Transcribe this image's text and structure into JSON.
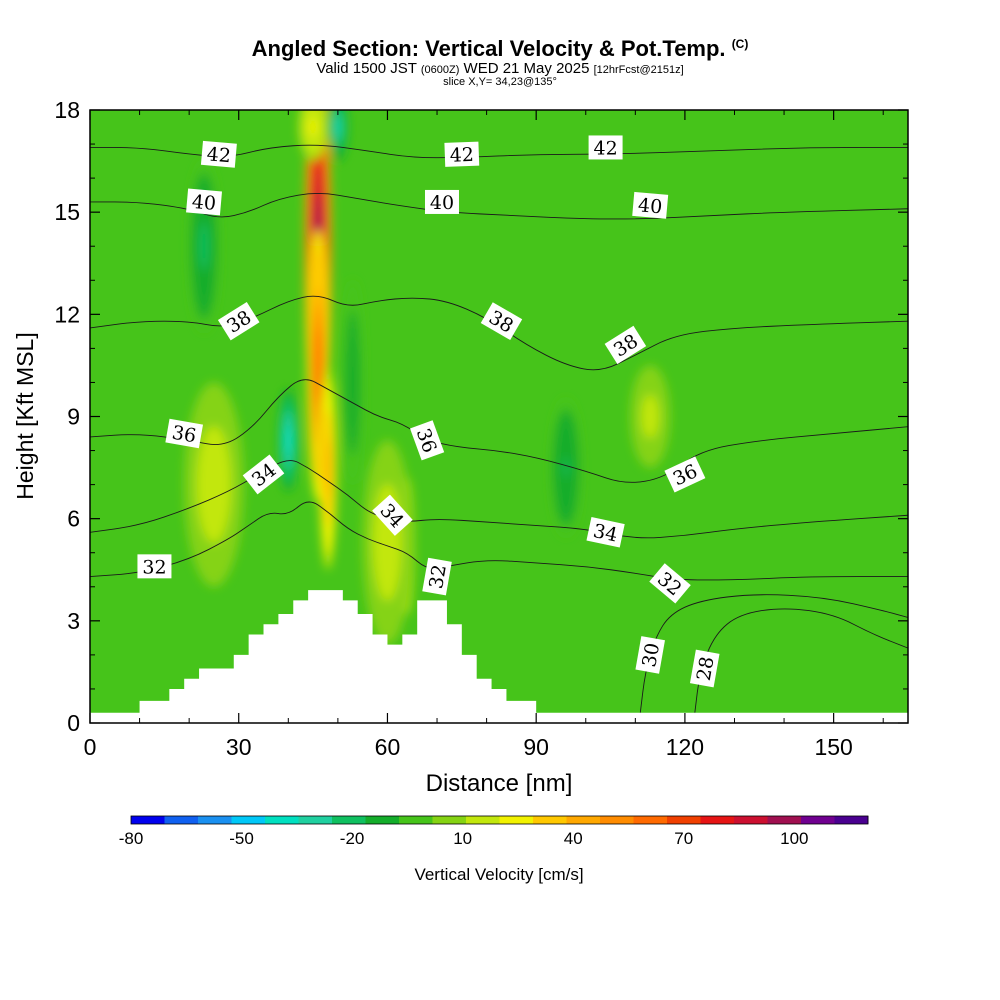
{
  "title": {
    "main": "Angled Section: Vertical Velocity & Pot.Temp.",
    "main_tag": "(C)",
    "valid_prefix": "Valid 1500 JST",
    "valid_zulu": "(0600Z)",
    "valid_date": "WED 21 May 2025",
    "valid_fcst": "[12hrFcst@2151z]",
    "slice": "slice X,Y= 34,23@135°"
  },
  "chart_data": {
    "type": "contour",
    "title": "Angled Section: Vertical Velocity & Pot.Temp.",
    "xlabel": "Distance [nm]",
    "ylabel": "Height [Kft MSL]",
    "xlim": [
      0,
      165
    ],
    "ylim": [
      0,
      18
    ],
    "xticks": [
      0,
      30,
      60,
      90,
      120,
      150
    ],
    "yticks": [
      0,
      3,
      6,
      9,
      12,
      15,
      18
    ],
    "colorbar": {
      "label": "Vertical Velocity [cm/s]",
      "tick_labels": [
        "-80",
        "-50",
        "-20",
        "10",
        "40",
        "70",
        "100"
      ],
      "tick_values": [
        -80,
        -50,
        -20,
        10,
        40,
        70,
        100
      ],
      "range": [
        -80,
        120
      ],
      "colors": [
        "#0000ee",
        "#1060f0",
        "#1a90f0",
        "#00c8f8",
        "#00e0c0",
        "#20d0a0",
        "#10c060",
        "#14ad2b",
        "#46c41a",
        "#85d313",
        "#c2e70d",
        "#f2f200",
        "#ffc800",
        "#ffa800",
        "#ff8c00",
        "#ff6a00",
        "#f04000",
        "#e61414",
        "#cc1030",
        "#a01050",
        "#700090",
        "#4a0090"
      ]
    },
    "terrain_kft": [
      [
        0,
        0.3
      ],
      [
        10,
        0.3
      ],
      [
        10,
        0.65
      ],
      [
        16,
        0.65
      ],
      [
        16,
        1.0
      ],
      [
        19,
        1.0
      ],
      [
        19,
        1.3
      ],
      [
        22,
        1.3
      ],
      [
        22,
        1.6
      ],
      [
        29,
        1.6
      ],
      [
        29,
        2.0
      ],
      [
        32,
        2.0
      ],
      [
        32,
        2.6
      ],
      [
        35,
        2.6
      ],
      [
        35,
        2.9
      ],
      [
        38,
        2.9
      ],
      [
        38,
        3.2
      ],
      [
        41,
        3.2
      ],
      [
        41,
        3.6
      ],
      [
        44,
        3.6
      ],
      [
        44,
        3.9
      ],
      [
        51,
        3.9
      ],
      [
        51,
        3.6
      ],
      [
        54,
        3.6
      ],
      [
        54,
        3.2
      ],
      [
        57,
        3.2
      ],
      [
        57,
        2.6
      ],
      [
        60,
        2.6
      ],
      [
        60,
        2.3
      ],
      [
        63,
        2.3
      ],
      [
        63,
        2.6
      ],
      [
        66,
        2.6
      ],
      [
        66,
        3.6
      ],
      [
        72,
        3.6
      ],
      [
        72,
        2.9
      ],
      [
        75,
        2.9
      ],
      [
        75,
        2.0
      ],
      [
        78,
        2.0
      ],
      [
        78,
        1.3
      ],
      [
        81,
        1.3
      ],
      [
        81,
        1.0
      ],
      [
        84,
        1.0
      ],
      [
        84,
        0.65
      ],
      [
        90,
        0.65
      ],
      [
        90,
        0.3
      ],
      [
        165,
        0.3
      ]
    ],
    "series": [
      {
        "name": "28",
        "points": [
          [
            122,
            0.3
          ],
          [
            123,
            1.5
          ],
          [
            126,
            2.6
          ],
          [
            131,
            3.2
          ],
          [
            140,
            3.4
          ],
          [
            150,
            3.2
          ],
          [
            158,
            2.6
          ],
          [
            165,
            2.2
          ]
        ]
      },
      {
        "name": "30",
        "points": [
          [
            111,
            0.3
          ],
          [
            112,
            1.5
          ],
          [
            114,
            2.5
          ],
          [
            117,
            3.2
          ],
          [
            123,
            3.6
          ],
          [
            134,
            3.8
          ],
          [
            148,
            3.7
          ],
          [
            160,
            3.3
          ],
          [
            165,
            3.1
          ]
        ]
      },
      {
        "name": "32",
        "points": [
          [
            0,
            4.3
          ],
          [
            10,
            4.4
          ],
          [
            20,
            4.8
          ],
          [
            28,
            5.4
          ],
          [
            32,
            5.8
          ],
          [
            36,
            6.2
          ],
          [
            40,
            6.1
          ],
          [
            44,
            6.6
          ],
          [
            48,
            6.2
          ],
          [
            52,
            5.7
          ],
          [
            56,
            5.4
          ],
          [
            60,
            5.2
          ],
          [
            64,
            5.0
          ],
          [
            68,
            4.5
          ],
          [
            72,
            4.6
          ],
          [
            80,
            4.8
          ],
          [
            90,
            4.7
          ],
          [
            100,
            4.6
          ],
          [
            110,
            4.4
          ],
          [
            118,
            4.2
          ],
          [
            130,
            4.2
          ],
          [
            145,
            4.3
          ],
          [
            165,
            4.3
          ]
        ]
      },
      {
        "name": "34",
        "points": [
          [
            0,
            5.6
          ],
          [
            10,
            5.8
          ],
          [
            20,
            6.3
          ],
          [
            28,
            6.8
          ],
          [
            34,
            7.3
          ],
          [
            40,
            7.8
          ],
          [
            44,
            7.5
          ],
          [
            48,
            7.1
          ],
          [
            52,
            6.7
          ],
          [
            56,
            6.2
          ],
          [
            60,
            6.0
          ],
          [
            64,
            5.9
          ],
          [
            70,
            6.0
          ],
          [
            80,
            5.9
          ],
          [
            90,
            5.8
          ],
          [
            100,
            5.7
          ],
          [
            110,
            5.4
          ],
          [
            120,
            5.5
          ],
          [
            130,
            5.7
          ],
          [
            145,
            5.9
          ],
          [
            165,
            6.1
          ]
        ]
      },
      {
        "name": "36",
        "points": [
          [
            0,
            8.4
          ],
          [
            10,
            8.5
          ],
          [
            20,
            8.3
          ],
          [
            27,
            8.1
          ],
          [
            33,
            8.7
          ],
          [
            38,
            9.6
          ],
          [
            43,
            10.2
          ],
          [
            48,
            9.8
          ],
          [
            53,
            9.4
          ],
          [
            58,
            9.0
          ],
          [
            63,
            8.8
          ],
          [
            68,
            8.3
          ],
          [
            74,
            8.1
          ],
          [
            82,
            8.0
          ],
          [
            90,
            7.8
          ],
          [
            100,
            7.4
          ],
          [
            108,
            7.0
          ],
          [
            116,
            7.2
          ],
          [
            123,
            8.0
          ],
          [
            135,
            8.3
          ],
          [
            150,
            8.5
          ],
          [
            165,
            8.7
          ]
        ]
      },
      {
        "name": "38",
        "points": [
          [
            0,
            11.6
          ],
          [
            10,
            11.8
          ],
          [
            20,
            11.8
          ],
          [
            27,
            11.6
          ],
          [
            33,
            11.9
          ],
          [
            40,
            12.4
          ],
          [
            46,
            12.6
          ],
          [
            52,
            12.2
          ],
          [
            58,
            12.4
          ],
          [
            65,
            12.5
          ],
          [
            72,
            12.4
          ],
          [
            80,
            11.9
          ],
          [
            88,
            11.1
          ],
          [
            96,
            10.5
          ],
          [
            103,
            10.3
          ],
          [
            110,
            10.8
          ],
          [
            118,
            11.4
          ],
          [
            130,
            11.6
          ],
          [
            145,
            11.7
          ],
          [
            165,
            11.8
          ]
        ]
      },
      {
        "name": "40",
        "points": [
          [
            0,
            15.3
          ],
          [
            10,
            15.3
          ],
          [
            20,
            15.1
          ],
          [
            26,
            14.8
          ],
          [
            32,
            15.0
          ],
          [
            38,
            15.4
          ],
          [
            46,
            15.6
          ],
          [
            54,
            15.4
          ],
          [
            62,
            15.2
          ],
          [
            72,
            15.0
          ],
          [
            85,
            14.9
          ],
          [
            100,
            14.8
          ],
          [
            112,
            14.8
          ],
          [
            125,
            14.9
          ],
          [
            140,
            15.0
          ],
          [
            165,
            15.1
          ]
        ]
      },
      {
        "name": "42",
        "points": [
          [
            0,
            16.9
          ],
          [
            10,
            16.9
          ],
          [
            20,
            16.7
          ],
          [
            28,
            16.6
          ],
          [
            36,
            16.9
          ],
          [
            46,
            17.0
          ],
          [
            56,
            16.8
          ],
          [
            65,
            16.6
          ],
          [
            75,
            16.6
          ],
          [
            90,
            16.7
          ],
          [
            105,
            16.7
          ],
          [
            125,
            16.8
          ],
          [
            145,
            16.9
          ],
          [
            165,
            16.9
          ]
        ]
      }
    ]
  },
  "contour_labels": [
    {
      "text": "42",
      "x": 26,
      "y": 16.7,
      "angle": 5
    },
    {
      "text": "42",
      "x": 75,
      "y": 16.7,
      "angle": -2
    },
    {
      "text": "42",
      "x": 104,
      "y": 16.9,
      "angle": 0
    },
    {
      "text": "40",
      "x": 23,
      "y": 15.3,
      "angle": 5
    },
    {
      "text": "40",
      "x": 71,
      "y": 15.3,
      "angle": 0
    },
    {
      "text": "40",
      "x": 113,
      "y": 15.2,
      "angle": 5
    },
    {
      "text": "38",
      "x": 30,
      "y": 11.8,
      "angle": -32
    },
    {
      "text": "38",
      "x": 83,
      "y": 11.8,
      "angle": 30
    },
    {
      "text": "38",
      "x": 108,
      "y": 11.1,
      "angle": -32
    },
    {
      "text": "36",
      "x": 19,
      "y": 8.5,
      "angle": 10
    },
    {
      "text": "36",
      "x": 68,
      "y": 8.3,
      "angle": 70
    },
    {
      "text": "36",
      "x": 120,
      "y": 7.3,
      "angle": -25
    },
    {
      "text": "34",
      "x": 35,
      "y": 7.3,
      "angle": -38
    },
    {
      "text": "34",
      "x": 61,
      "y": 6.1,
      "angle": 48
    },
    {
      "text": "34",
      "x": 104,
      "y": 5.6,
      "angle": 12
    },
    {
      "text": "32",
      "x": 13,
      "y": 4.6,
      "angle": 0
    },
    {
      "text": "32",
      "x": 70,
      "y": 4.3,
      "angle": -80
    },
    {
      "text": "32",
      "x": 117,
      "y": 4.1,
      "angle": 40
    },
    {
      "text": "30",
      "x": 113,
      "y": 2.0,
      "angle": -80
    },
    {
      "text": "28",
      "x": 124,
      "y": 1.6,
      "angle": -80
    }
  ],
  "velocity_features": [
    {
      "kind": "updraft",
      "center": [
        46,
        13.8
      ],
      "peak": 112,
      "rx": 6,
      "ry": 6
    },
    {
      "kind": "updraft",
      "center": [
        46,
        10.5
      ],
      "peak": 65,
      "rx": 5,
      "ry": 4
    },
    {
      "kind": "updraft",
      "center": [
        48,
        7.5
      ],
      "peak": 45,
      "rx": 4,
      "ry": 3
    },
    {
      "kind": "updraft",
      "center": [
        64,
        5.2
      ],
      "peak": 42,
      "rx": 3,
      "ry": 2
    },
    {
      "kind": "weak",
      "center": [
        25,
        7.0
      ],
      "peak": 18,
      "rx": 6,
      "ry": 3
    },
    {
      "kind": "weak",
      "center": [
        60,
        5.3
      ],
      "peak": 18,
      "rx": 5,
      "ry": 3
    },
    {
      "kind": "weak",
      "center": [
        113,
        9.0
      ],
      "peak": 16,
      "rx": 4,
      "ry": 1.5
    },
    {
      "kind": "weak",
      "center": [
        45,
        17.5
      ],
      "peak": 25,
      "rx": 3,
      "ry": 1
    },
    {
      "kind": "downdraft",
      "center": [
        50,
        17.5
      ],
      "peak": -35,
      "rx": 2,
      "ry": 1
    },
    {
      "kind": "downdraft",
      "center": [
        40,
        8.3
      ],
      "peak": -40,
      "rx": 2,
      "ry": 1.5
    },
    {
      "kind": "downdraft",
      "center": [
        23,
        14
      ],
      "peak": -20,
      "rx": 3,
      "ry": 2.5
    },
    {
      "kind": "downdraft",
      "center": [
        96,
        7.5
      ],
      "peak": -18,
      "rx": 3,
      "ry": 2
    },
    {
      "kind": "downdraft",
      "center": [
        53,
        10
      ],
      "peak": -15,
      "rx": 2,
      "ry": 3
    }
  ]
}
